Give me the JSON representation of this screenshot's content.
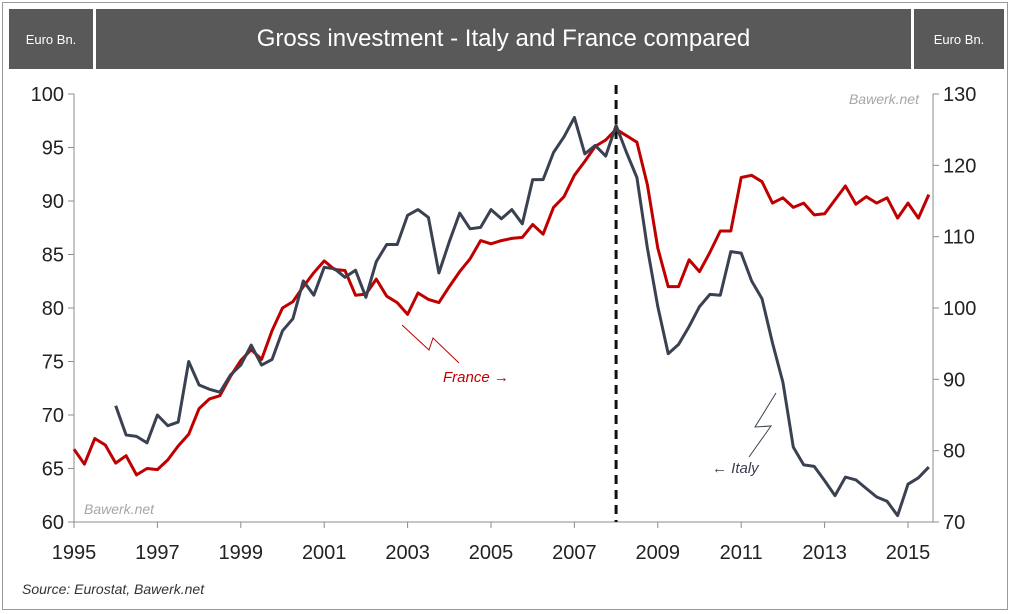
{
  "header": {
    "left_unit": "Euro Bn.",
    "title": "Gross investment - Italy and France compared",
    "right_unit": "Euro Bn."
  },
  "source": "Source: Eurostat, Bawerk.net",
  "watermarks": [
    "Bawerk.net",
    "Bawerk.net"
  ],
  "annotations": {
    "france": "France →",
    "italy": "← Italy"
  },
  "colors": {
    "italy": "#3a4150",
    "france": "#c00000",
    "axis": "#8c8c8c"
  },
  "chart_data": {
    "type": "line",
    "xlim": [
      1995,
      2015.6
    ],
    "x_ticks": [
      "1995",
      "1997",
      "1999",
      "2001",
      "2003",
      "2005",
      "2007",
      "2009",
      "2011",
      "2013",
      "2015"
    ],
    "left_axis": {
      "range": [
        60,
        100
      ],
      "ticks": [
        "60",
        "65",
        "70",
        "75",
        "80",
        "85",
        "90",
        "95",
        "100"
      ]
    },
    "right_axis": {
      "range": [
        70,
        130
      ],
      "ticks": [
        "70",
        "80",
        "90",
        "100",
        "110",
        "120",
        "130"
      ]
    },
    "marker_line_x": 2008.0,
    "series": [
      {
        "name": "France",
        "axis": "left",
        "x": [
          1995.0,
          1995.25,
          1995.5,
          1995.75,
          1996.0,
          1996.25,
          1996.5,
          1996.75,
          1997.0,
          1997.25,
          1997.5,
          1997.75,
          1998.0,
          1998.25,
          1998.5,
          1998.75,
          1999.0,
          1999.25,
          1999.5,
          1999.75,
          2000.0,
          2000.25,
          2000.5,
          2000.75,
          2001.0,
          2001.25,
          2001.5,
          2001.75,
          2002.0,
          2002.25,
          2002.5,
          2002.75,
          2003.0,
          2003.25,
          2003.5,
          2003.75,
          2004.0,
          2004.25,
          2004.5,
          2004.75,
          2005.0,
          2005.25,
          2005.5,
          2005.75,
          2006.0,
          2006.25,
          2006.5,
          2006.75,
          2007.0,
          2007.25,
          2007.5,
          2007.75,
          2008.0,
          2008.25,
          2008.5,
          2008.75,
          2009.0,
          2009.25,
          2009.5,
          2009.75,
          2010.0,
          2010.25,
          2010.5,
          2010.75,
          2011.0,
          2011.25,
          2011.5,
          2011.75,
          2012.0,
          2012.25,
          2012.5,
          2012.75,
          2013.0,
          2013.25,
          2013.5,
          2013.75,
          2014.0,
          2014.25,
          2014.5,
          2014.75,
          2015.0,
          2015.25,
          2015.5
        ],
        "values": [
          66.8,
          65.4,
          67.8,
          67.2,
          65.5,
          66.2,
          64.4,
          65.0,
          64.9,
          65.8,
          67.1,
          68.2,
          70.6,
          71.5,
          71.8,
          73.6,
          75.1,
          76.1,
          75.2,
          77.9,
          80.0,
          80.6,
          82.0,
          83.3,
          84.4,
          83.6,
          83.5,
          81.2,
          81.3,
          82.7,
          81.1,
          80.5,
          79.4,
          81.4,
          80.8,
          80.5,
          82.0,
          83.4,
          84.6,
          86.3,
          86.0,
          86.3,
          86.5,
          86.6,
          87.8,
          86.9,
          89.4,
          90.4,
          92.4,
          93.7,
          95.1,
          95.7,
          96.7,
          96.1,
          95.5,
          91.5,
          85.6,
          82.0,
          82.0,
          84.5,
          83.4,
          85.2,
          87.2,
          87.2,
          92.2,
          92.4,
          91.8,
          89.8,
          90.3,
          89.4,
          89.8,
          88.7,
          88.8,
          90.1,
          91.4,
          89.7,
          90.4,
          89.8,
          90.3,
          88.4,
          89.8,
          88.4,
          90.6
        ]
      },
      {
        "name": "Italy",
        "axis": "right",
        "x": [
          1996.0,
          1996.25,
          1996.5,
          1996.75,
          1997.0,
          1997.25,
          1997.5,
          1997.75,
          1998.0,
          1998.25,
          1998.5,
          1998.75,
          1999.0,
          1999.25,
          1999.5,
          1999.75,
          2000.0,
          2000.25,
          2000.5,
          2000.75,
          2001.0,
          2001.25,
          2001.5,
          2001.75,
          2002.0,
          2002.25,
          2002.5,
          2002.75,
          2003.0,
          2003.25,
          2003.5,
          2003.75,
          2004.0,
          2004.25,
          2004.5,
          2004.75,
          2005.0,
          2005.25,
          2005.5,
          2005.75,
          2006.0,
          2006.25,
          2006.5,
          2006.75,
          2007.0,
          2007.25,
          2007.5,
          2007.75,
          2008.0,
          2008.25,
          2008.5,
          2008.75,
          2009.0,
          2009.25,
          2009.5,
          2009.75,
          2010.0,
          2010.25,
          2010.5,
          2010.75,
          2011.0,
          2011.25,
          2011.5,
          2011.75,
          2012.0,
          2012.25,
          2012.5,
          2012.75,
          2013.0,
          2013.25,
          2013.5,
          2013.75,
          2014.0,
          2014.25,
          2014.5,
          2014.75,
          2015.0,
          2015.25,
          2015.5
        ],
        "values": [
          86.3,
          82.2,
          82.0,
          81.1,
          85.0,
          83.5,
          84.0,
          92.5,
          89.2,
          88.6,
          88.2,
          90.6,
          92.0,
          94.8,
          92.0,
          92.8,
          96.8,
          98.5,
          103.8,
          101.8,
          105.7,
          105.5,
          104.3,
          105.3,
          101.5,
          106.5,
          108.9,
          108.9,
          113.0,
          113.8,
          112.7,
          104.9,
          109.3,
          113.3,
          111.1,
          111.3,
          113.8,
          112.5,
          113.8,
          111.8,
          118.0,
          118.0,
          121.8,
          124.0,
          126.7,
          121.6,
          122.8,
          121.3,
          125.6,
          121.8,
          118.3,
          108.4,
          100.2,
          93.6,
          94.9,
          97.4,
          100.2,
          101.9,
          101.8,
          107.9,
          107.7,
          103.8,
          101.3,
          95.1,
          89.6,
          80.5,
          78.0,
          77.8,
          75.8,
          73.7,
          76.3,
          75.9,
          74.7,
          73.5,
          72.9,
          70.9,
          75.3,
          76.2,
          77.7
        ]
      }
    ]
  }
}
